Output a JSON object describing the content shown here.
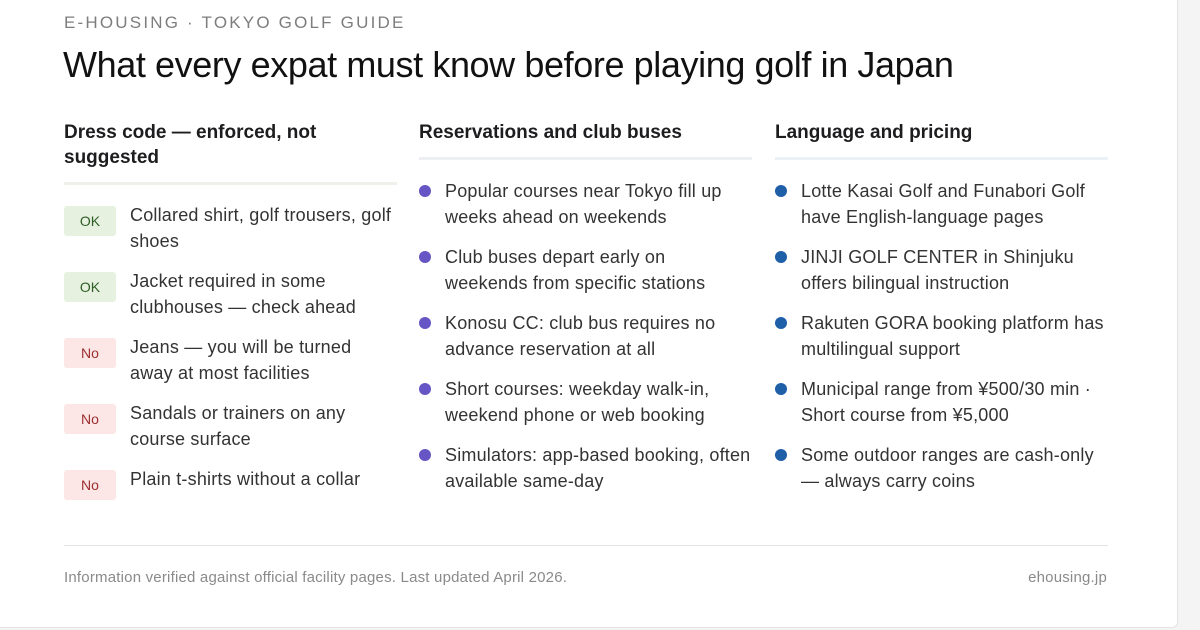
{
  "header": {
    "eyebrow": "E-HOUSING · TOKYO GOLF GUIDE",
    "title": "What every expat must know before playing golf in Japan"
  },
  "columns": {
    "dress": {
      "heading": "Dress code — enforced, not suggested",
      "items": [
        {
          "status": "OK",
          "text": "Collared shirt, golf trousers, golf shoes"
        },
        {
          "status": "OK",
          "text": "Jacket required in some clubhouses — check ahead"
        },
        {
          "status": "No",
          "text": "Jeans — you will be turned away at most facilities"
        },
        {
          "status": "No",
          "text": "Sandals or trainers on any course surface"
        },
        {
          "status": "No",
          "text": "Plain t-shirts without a collar"
        }
      ]
    },
    "reservations": {
      "heading": "Reservations and club buses",
      "items": [
        "Popular courses near Tokyo fill up weeks ahead on weekends",
        "Club buses depart early on weekends from specific stations",
        "Konosu CC: club bus requires no advance reservation at all",
        "Short courses: weekday walk-in, weekend phone or web booking",
        "Simulators: app-based booking, often available same-day"
      ]
    },
    "language": {
      "heading": "Language and pricing",
      "items": [
        "Lotte Kasai Golf and Funabori Golf have English-language pages",
        "JINJI GOLF CENTER in Shinjuku offers bilingual instruction",
        "Rakuten GORA booking platform has multilingual support",
        "Municipal range from ¥500/30 min · Short course from ¥5,000",
        "Some outdoor ranges are cash-only — always carry coins"
      ]
    }
  },
  "footer": {
    "note": "Information verified against official facility pages. Last updated April 2026.",
    "source": "ehousing.jp"
  },
  "colors": {
    "ok_badge_bg": "#e6f1df",
    "no_badge_bg": "#fde6e6",
    "reservation_bullet": "#6655c4",
    "language_bullet": "#1f5fa8"
  }
}
